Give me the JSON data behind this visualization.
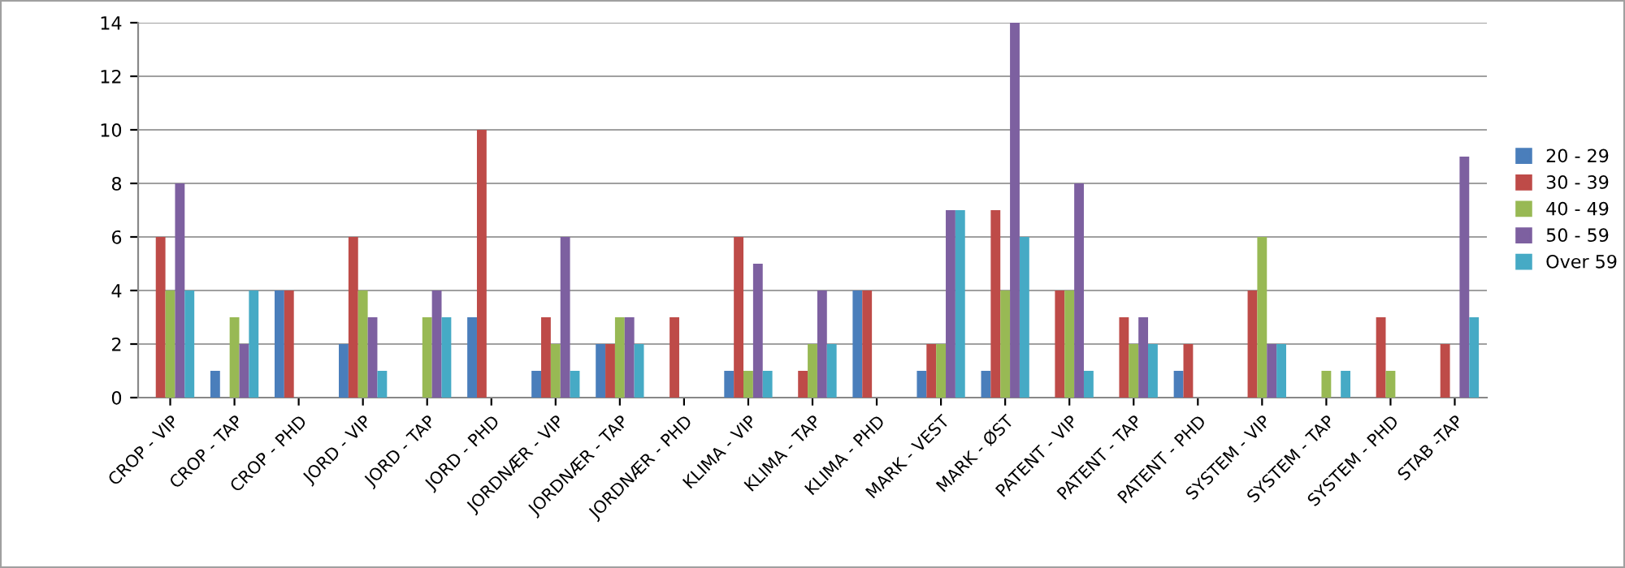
{
  "chart_data": {
    "type": "bar",
    "categories": [
      "CROP - VIP",
      "CROP - TAP",
      "CROP - PHD",
      "JORD - VIP",
      "JORD - TAP",
      "JORD - PHD",
      "JORDNÆR - VIP",
      "JORDNÆR - TAP",
      "JORDNÆR - PHD",
      "KLIMA - VIP",
      "KLIMA - TAP",
      "KLIMA - PHD",
      "MARK - VEST",
      "MARK - ØST",
      "PATENT - VIP",
      "PATENT - TAP",
      "PATENT - PHD",
      "SYSTEM - VIP",
      "SYSTEM - TAP",
      "SYSTEM - PHD",
      "STAB -TAP"
    ],
    "series": [
      {
        "name": "20 - 29",
        "color": "#4a7ebb",
        "values": [
          null,
          1,
          4,
          2,
          null,
          3,
          1,
          2,
          null,
          1,
          null,
          4,
          1,
          1,
          null,
          null,
          1,
          null,
          null,
          null,
          null
        ]
      },
      {
        "name": "30 - 39",
        "color": "#be4b48",
        "values": [
          6,
          null,
          4,
          6,
          null,
          10,
          3,
          2,
          3,
          6,
          1,
          4,
          2,
          7,
          4,
          3,
          2,
          4,
          null,
          3,
          2
        ]
      },
      {
        "name": "40 - 49",
        "color": "#98b954",
        "values": [
          4,
          3,
          null,
          4,
          3,
          null,
          2,
          3,
          null,
          1,
          2,
          null,
          2,
          4,
          4,
          2,
          null,
          6,
          1,
          1,
          null
        ]
      },
      {
        "name": "50 - 59",
        "color": "#7d60a0",
        "values": [
          8,
          2,
          null,
          3,
          4,
          null,
          6,
          3,
          null,
          5,
          4,
          null,
          7,
          14,
          8,
          3,
          null,
          2,
          null,
          null,
          9
        ]
      },
      {
        "name": "Over 59",
        "color": "#46aac5",
        "values": [
          4,
          4,
          null,
          1,
          3,
          null,
          1,
          2,
          null,
          1,
          2,
          null,
          7,
          6,
          1,
          2,
          null,
          2,
          1,
          null,
          3
        ]
      }
    ],
    "ylim": [
      0,
      14
    ],
    "yticks": [
      0,
      2,
      4,
      6,
      8,
      10,
      12,
      14
    ],
    "grid": "y",
    "legend": "right"
  }
}
